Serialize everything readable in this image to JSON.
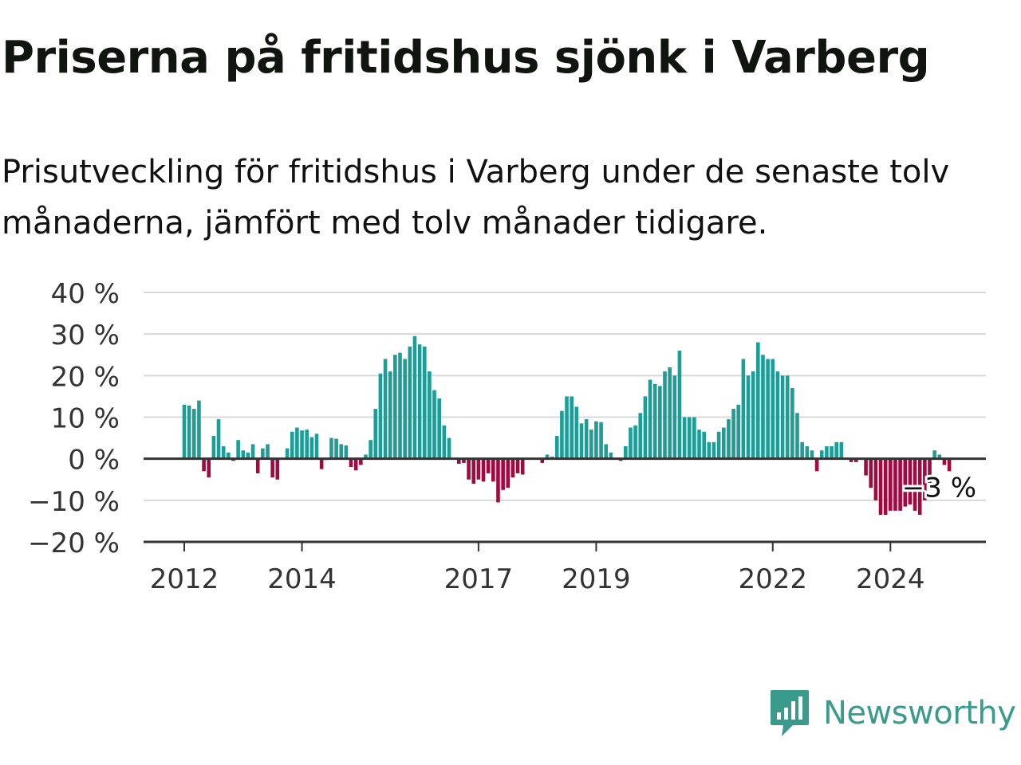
{
  "title": "Priserna på fritidshus sjönk i Varberg",
  "subtitle": "Prisutveckling för fritidshus i Varberg under de senaste tolv månaderna, jämfört med tolv månader tidigare.",
  "brand": {
    "name": "Newsworthy",
    "icon": "newsworthy-logo-icon",
    "color": "#3a9a8c"
  },
  "chart_data": {
    "type": "bar",
    "ylim": [
      -20,
      40
    ],
    "yticks": [
      40,
      30,
      20,
      10,
      0,
      -10,
      -20
    ],
    "ytick_labels": [
      "40 %",
      "30 %",
      "20 %",
      "10 %",
      "0 %",
      "−10 %",
      "−20 %"
    ],
    "xticks": [
      {
        "label": "2012",
        "month": "2012-01"
      },
      {
        "label": "2014",
        "month": "2014-01"
      },
      {
        "label": "2017",
        "month": "2017-01"
      },
      {
        "label": "2019",
        "month": "2019-01"
      },
      {
        "label": "2022",
        "month": "2022-01"
      },
      {
        "label": "2024",
        "month": "2024-01"
      }
    ],
    "start_month": "2012-01",
    "x_max_month": "2025-09",
    "grid": true,
    "positive_color": "#1a9e97",
    "negative_color": "#a3083f",
    "zero_line_color": "#333333",
    "annotation": {
      "label": "−3 %",
      "month": "2025-01",
      "value": -3
    },
    "values": [
      13,
      12.8,
      12,
      14,
      -3,
      -4.5,
      5.5,
      9.5,
      3,
      1.5,
      -0.5,
      4.5,
      2,
      1.5,
      3.5,
      -3.5,
      2.5,
      3.5,
      -4.5,
      -5,
      0,
      2.5,
      6.5,
      7.5,
      6.8,
      7,
      5.2,
      6,
      -2.5,
      -0.3,
      5,
      4.8,
      3.5,
      3.2,
      -2,
      -2.8,
      -1.5,
      1,
      4.5,
      12,
      20.5,
      24,
      21,
      25,
      25.5,
      24,
      27,
      29.5,
      27.5,
      27,
      21,
      16.5,
      14.5,
      8,
      5,
      0,
      -1.2,
      -1,
      -5,
      -6,
      -5,
      -5.5,
      -3.5,
      -5.5,
      -10.5,
      -7.5,
      -7,
      -4.5,
      -3.5,
      -3.8,
      0,
      0,
      0,
      -1,
      1,
      0.5,
      5.5,
      11.5,
      15,
      15,
      12.5,
      8.5,
      9.5,
      7,
      9,
      8.8,
      3.5,
      1.5,
      0,
      -0.5,
      3,
      7.5,
      8,
      11,
      15,
      19,
      18,
      17.5,
      21,
      22,
      20,
      26,
      10,
      10,
      10,
      7,
      6.5,
      4,
      4,
      6.5,
      7.5,
      9.5,
      12,
      13,
      24,
      20,
      21,
      28,
      25,
      24,
      24,
      21,
      20,
      20,
      17,
      11,
      4,
      3,
      2,
      -3,
      2,
      3,
      3,
      4,
      4,
      0,
      -0.8,
      -0.8,
      0,
      -4,
      -7,
      -10,
      -13.5,
      -13.5,
      -12.5,
      -12.5,
      -12.5,
      -11.5,
      -11,
      -12.5,
      -13.5,
      -10,
      -7,
      2,
      1,
      -1.5,
      -3
    ]
  }
}
